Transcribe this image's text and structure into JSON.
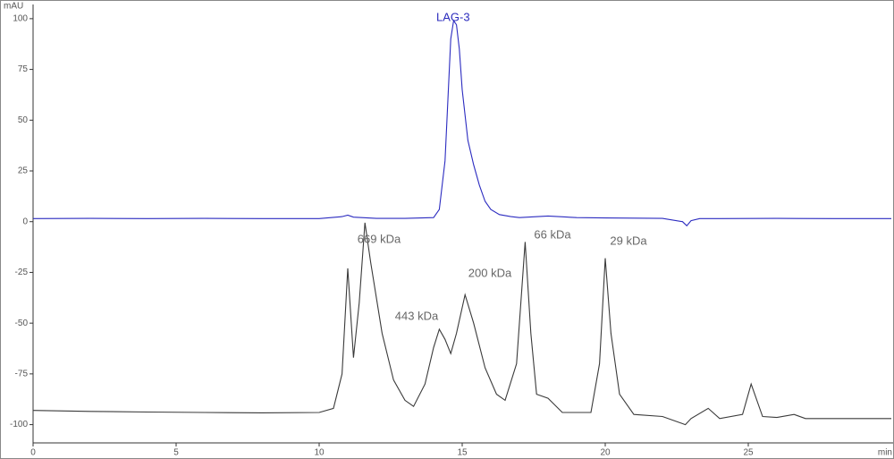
{
  "chart_data": {
    "type": "line",
    "y_label": "mAU",
    "x_label": "min",
    "xlim": [
      0,
      30
    ],
    "xticks": [
      0,
      5,
      10,
      15,
      20,
      25
    ],
    "ylim": [
      -109,
      107
    ],
    "yticks": [
      100,
      75,
      50,
      25,
      0,
      -25,
      -50,
      -75,
      -100
    ],
    "grid": false,
    "annotations": [
      "669 kDa",
      "443 kDa",
      "200 kDa",
      "66 kDa",
      "29 kDa"
    ],
    "series": [
      {
        "name": "LAG-3",
        "color": "#2b2bc0",
        "x": [
          0,
          2,
          4,
          6,
          8,
          10,
          10.8,
          11.0,
          11.2,
          12,
          13,
          14.0,
          14.2,
          14.4,
          14.5,
          14.6,
          14.7,
          14.8,
          14.9,
          15.0,
          15.2,
          15.4,
          15.6,
          15.8,
          16.0,
          16.3,
          16.7,
          17,
          18,
          19,
          20,
          22,
          22.7,
          22.85,
          23,
          23.3,
          24,
          26,
          28,
          30
        ],
        "values": [
          1.5,
          1.6,
          1.5,
          1.6,
          1.5,
          1.5,
          2.5,
          3.2,
          2.2,
          1.6,
          1.6,
          2,
          6,
          30,
          60,
          90,
          99,
          97,
          85,
          65,
          40,
          28,
          18,
          10,
          6,
          3.5,
          2.5,
          2,
          2.8,
          2,
          1.8,
          1.6,
          0,
          -2,
          0.5,
          1.5,
          1.5,
          1.6,
          1.5,
          1.5
        ]
      },
      {
        "color": "#3a3a3a",
        "x": [
          0,
          2,
          4,
          6,
          8,
          10,
          10.5,
          10.8,
          11.0,
          11.2,
          11.4,
          11.6,
          11.8,
          12.2,
          12.6,
          13.0,
          13.3,
          13.7,
          14.0,
          14.2,
          14.4,
          14.6,
          14.8,
          15.1,
          15.4,
          15.8,
          16.2,
          16.5,
          16.9,
          17.2,
          17.4,
          17.6,
          18.0,
          18.5,
          19.5,
          19.8,
          20.0,
          20.2,
          20.5,
          21.0,
          22.0,
          22.8,
          23.0,
          23.6,
          24.0,
          24.8,
          25.1,
          25.5,
          26.0,
          26.6,
          27.0,
          30
        ],
        "values": [
          -93,
          -93.5,
          -93.8,
          -94,
          -94.2,
          -94,
          -92,
          -75,
          -23,
          -67,
          -40,
          -0.5,
          -20,
          -55,
          -78,
          -88,
          -91,
          -80,
          -62,
          -53,
          -58,
          -65,
          -55,
          -36,
          -50,
          -72,
          -85,
          -88,
          -70,
          -10,
          -55,
          -85,
          -87,
          -94,
          -94,
          -70,
          -18,
          -55,
          -85,
          -95,
          -96,
          -100,
          -97,
          -92,
          -97,
          -95,
          -80,
          -96,
          -96.5,
          -95,
          -97,
          -97
        ]
      }
    ]
  }
}
